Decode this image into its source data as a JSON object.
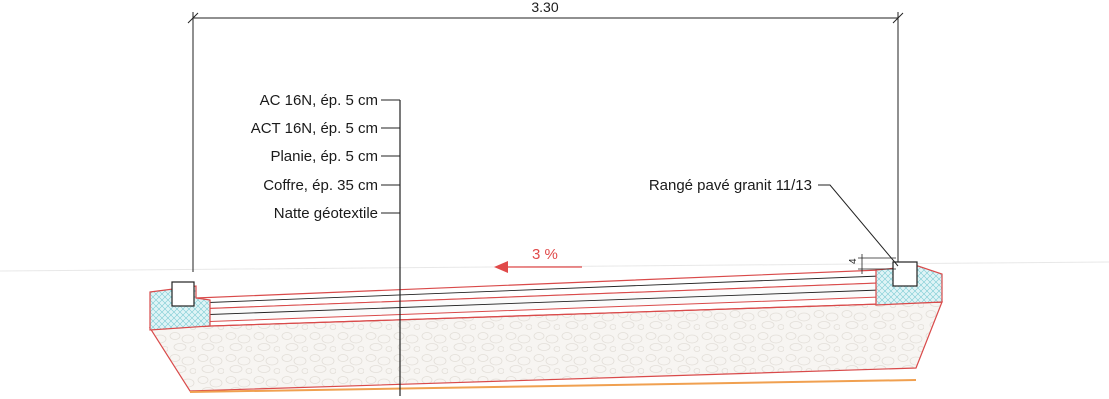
{
  "dimension": {
    "width_label": "3.30"
  },
  "layers": [
    {
      "label": "AC 16N, ép. 5 cm"
    },
    {
      "label": "ACT 16N, ép. 5 cm"
    },
    {
      "label": "Planie, ép. 5 cm"
    },
    {
      "label": "Coffre, ép. 35 cm"
    },
    {
      "label": "Natte géotextile"
    }
  ],
  "edge": {
    "label": "Rangé pavé granit 11/13",
    "small_dim": "4"
  },
  "slope": {
    "label": "3 %"
  },
  "colors": {
    "outline": "#d94a4a",
    "line": "#222222",
    "gravel_fill": "#f6f4f1",
    "concrete_fill": "#cfeef0",
    "geotextile": "#f0a050",
    "slope": "#e04a4a"
  }
}
